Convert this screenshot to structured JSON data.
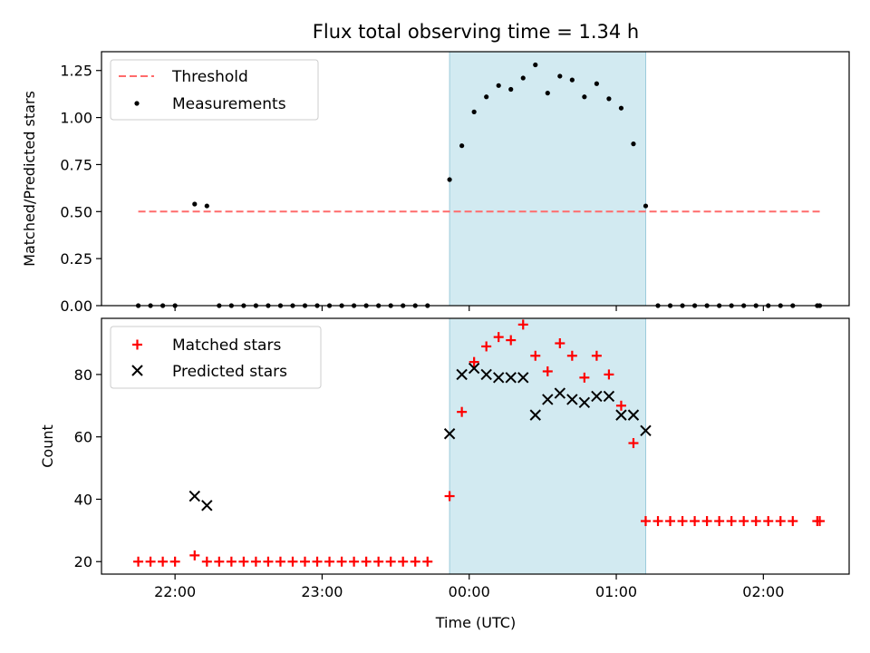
{
  "chart_data": {
    "type": "scatter",
    "title": "Flux total observing time = 1.34 h",
    "xlabel": "Time (UTC)",
    "time_axis": {
      "range": [
        "21:30",
        "02:35"
      ],
      "tick_labels": [
        "22:00",
        "23:00",
        "00:00",
        "01:00",
        "02:00"
      ]
    },
    "shaded_window": {
      "start": "23:52",
      "end": "01:12",
      "color": "#add8e6"
    },
    "panels": [
      {
        "id": "ratio",
        "ylabel": "Matched/Predicted stars",
        "ylim": [
          0,
          1.35
        ],
        "y_ticks": [
          "0.00",
          "0.25",
          "0.50",
          "0.75",
          "1.00",
          "1.25"
        ],
        "legend_position": "upper-left",
        "series": [
          {
            "name": "Threshold",
            "kind": "dashed-line",
            "color": "#ff6b6b",
            "points": [
              {
                "x": "21:45",
                "y": 0.5
              },
              {
                "x": "02:23",
                "y": 0.5
              }
            ]
          },
          {
            "name": "Measurements",
            "kind": "dot",
            "color": "#000000",
            "points": [
              {
                "x": "21:45",
                "y": 0
              },
              {
                "x": "21:50",
                "y": 0
              },
              {
                "x": "21:55",
                "y": 0
              },
              {
                "x": "22:00",
                "y": 0
              },
              {
                "x": "22:08",
                "y": 0.54
              },
              {
                "x": "22:13",
                "y": 0.53
              },
              {
                "x": "22:18",
                "y": 0
              },
              {
                "x": "22:23",
                "y": 0
              },
              {
                "x": "22:28",
                "y": 0
              },
              {
                "x": "22:33",
                "y": 0
              },
              {
                "x": "22:38",
                "y": 0
              },
              {
                "x": "22:43",
                "y": 0
              },
              {
                "x": "22:48",
                "y": 0
              },
              {
                "x": "22:53",
                "y": 0
              },
              {
                "x": "22:58",
                "y": 0
              },
              {
                "x": "23:03",
                "y": 0
              },
              {
                "x": "23:08",
                "y": 0
              },
              {
                "x": "23:13",
                "y": 0
              },
              {
                "x": "23:18",
                "y": 0
              },
              {
                "x": "23:23",
                "y": 0
              },
              {
                "x": "23:28",
                "y": 0
              },
              {
                "x": "23:33",
                "y": 0
              },
              {
                "x": "23:38",
                "y": 0
              },
              {
                "x": "23:43",
                "y": 0
              },
              {
                "x": "23:52",
                "y": 0.67
              },
              {
                "x": "23:57",
                "y": 0.85
              },
              {
                "x": "00:02",
                "y": 1.03
              },
              {
                "x": "00:07",
                "y": 1.11
              },
              {
                "x": "00:12",
                "y": 1.17
              },
              {
                "x": "00:17",
                "y": 1.15
              },
              {
                "x": "00:22",
                "y": 1.21
              },
              {
                "x": "00:27",
                "y": 1.28
              },
              {
                "x": "00:32",
                "y": 1.13
              },
              {
                "x": "00:37",
                "y": 1.22
              },
              {
                "x": "00:42",
                "y": 1.2
              },
              {
                "x": "00:47",
                "y": 1.11
              },
              {
                "x": "00:52",
                "y": 1.18
              },
              {
                "x": "00:57",
                "y": 1.1
              },
              {
                "x": "01:02",
                "y": 1.05
              },
              {
                "x": "01:07",
                "y": 0.86
              },
              {
                "x": "01:12",
                "y": 0.53
              },
              {
                "x": "01:17",
                "y": 0
              },
              {
                "x": "01:22",
                "y": 0
              },
              {
                "x": "01:27",
                "y": 0
              },
              {
                "x": "01:32",
                "y": 0
              },
              {
                "x": "01:37",
                "y": 0
              },
              {
                "x": "01:42",
                "y": 0
              },
              {
                "x": "01:47",
                "y": 0
              },
              {
                "x": "01:52",
                "y": 0
              },
              {
                "x": "01:57",
                "y": 0
              },
              {
                "x": "02:02",
                "y": 0
              },
              {
                "x": "02:07",
                "y": 0
              },
              {
                "x": "02:12",
                "y": 0
              },
              {
                "x": "02:22",
                "y": 0
              },
              {
                "x": "02:23",
                "y": 0
              }
            ]
          }
        ]
      },
      {
        "id": "count",
        "ylabel": "Count",
        "ylim": [
          16,
          98
        ],
        "y_ticks": [
          "20",
          "40",
          "60",
          "80"
        ],
        "legend_position": "upper-left",
        "series": [
          {
            "name": "Matched stars",
            "kind": "plus",
            "color": "#ff0000",
            "points": [
              {
                "x": "21:45",
                "y": 20
              },
              {
                "x": "21:50",
                "y": 20
              },
              {
                "x": "21:55",
                "y": 20
              },
              {
                "x": "22:00",
                "y": 20
              },
              {
                "x": "22:08",
                "y": 22
              },
              {
                "x": "22:13",
                "y": 20
              },
              {
                "x": "22:18",
                "y": 20
              },
              {
                "x": "22:23",
                "y": 20
              },
              {
                "x": "22:28",
                "y": 20
              },
              {
                "x": "22:33",
                "y": 20
              },
              {
                "x": "22:38",
                "y": 20
              },
              {
                "x": "22:43",
                "y": 20
              },
              {
                "x": "22:48",
                "y": 20
              },
              {
                "x": "22:53",
                "y": 20
              },
              {
                "x": "22:58",
                "y": 20
              },
              {
                "x": "23:03",
                "y": 20
              },
              {
                "x": "23:08",
                "y": 20
              },
              {
                "x": "23:13",
                "y": 20
              },
              {
                "x": "23:18",
                "y": 20
              },
              {
                "x": "23:23",
                "y": 20
              },
              {
                "x": "23:28",
                "y": 20
              },
              {
                "x": "23:33",
                "y": 20
              },
              {
                "x": "23:38",
                "y": 20
              },
              {
                "x": "23:43",
                "y": 20
              },
              {
                "x": "23:52",
                "y": 41
              },
              {
                "x": "23:57",
                "y": 68
              },
              {
                "x": "00:02",
                "y": 84
              },
              {
                "x": "00:07",
                "y": 89
              },
              {
                "x": "00:12",
                "y": 92
              },
              {
                "x": "00:17",
                "y": 91
              },
              {
                "x": "00:22",
                "y": 96
              },
              {
                "x": "00:27",
                "y": 86
              },
              {
                "x": "00:32",
                "y": 81
              },
              {
                "x": "00:37",
                "y": 90
              },
              {
                "x": "00:42",
                "y": 86
              },
              {
                "x": "00:47",
                "y": 79
              },
              {
                "x": "00:52",
                "y": 86
              },
              {
                "x": "00:57",
                "y": 80
              },
              {
                "x": "01:02",
                "y": 70
              },
              {
                "x": "01:07",
                "y": 58
              },
              {
                "x": "01:12",
                "y": 33
              },
              {
                "x": "01:17",
                "y": 33
              },
              {
                "x": "01:22",
                "y": 33
              },
              {
                "x": "01:27",
                "y": 33
              },
              {
                "x": "01:32",
                "y": 33
              },
              {
                "x": "01:37",
                "y": 33
              },
              {
                "x": "01:42",
                "y": 33
              },
              {
                "x": "01:47",
                "y": 33
              },
              {
                "x": "01:52",
                "y": 33
              },
              {
                "x": "01:57",
                "y": 33
              },
              {
                "x": "02:02",
                "y": 33
              },
              {
                "x": "02:07",
                "y": 33
              },
              {
                "x": "02:12",
                "y": 33
              },
              {
                "x": "02:22",
                "y": 33
              },
              {
                "x": "02:23",
                "y": 33
              }
            ]
          },
          {
            "name": "Predicted stars",
            "kind": "cross",
            "color": "#000000",
            "points": [
              {
                "x": "22:08",
                "y": 41
              },
              {
                "x": "22:13",
                "y": 38
              },
              {
                "x": "23:52",
                "y": 61
              },
              {
                "x": "23:57",
                "y": 80
              },
              {
                "x": "00:02",
                "y": 82
              },
              {
                "x": "00:07",
                "y": 80
              },
              {
                "x": "00:12",
                "y": 79
              },
              {
                "x": "00:17",
                "y": 79
              },
              {
                "x": "00:22",
                "y": 79
              },
              {
                "x": "00:27",
                "y": 67
              },
              {
                "x": "00:32",
                "y": 72
              },
              {
                "x": "00:37",
                "y": 74
              },
              {
                "x": "00:42",
                "y": 72
              },
              {
                "x": "00:47",
                "y": 71
              },
              {
                "x": "00:52",
                "y": 73
              },
              {
                "x": "00:57",
                "y": 73
              },
              {
                "x": "01:02",
                "y": 67
              },
              {
                "x": "01:07",
                "y": 67
              },
              {
                "x": "01:12",
                "y": 62
              }
            ]
          }
        ]
      }
    ]
  }
}
